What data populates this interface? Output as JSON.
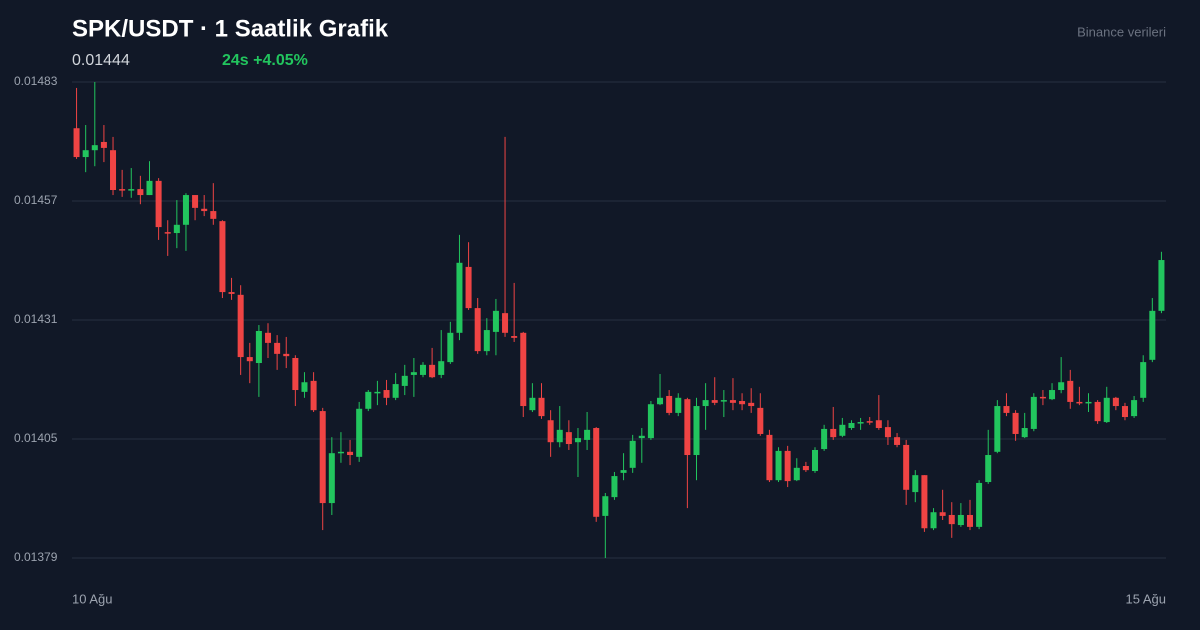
{
  "chart_data": {
    "type": "candlestick",
    "title": "SPK/USDT · 1 Saatlik Grafik",
    "price": 0.01444,
    "change_label": "24s +4.05%",
    "source": "Binance verileri",
    "x_labels": [
      "10 Ağu",
      "15 Ağu"
    ],
    "ylim": [
      0.01379,
      0.01483
    ],
    "yticks": [
      0.01483,
      0.01457,
      0.01431,
      0.01405,
      0.01379
    ],
    "grid": true,
    "up_color": "#22c55e",
    "down_color": "#ef4444",
    "open": [
      0.014729,
      0.014666,
      0.014681,
      0.014699,
      0.014681,
      0.014596,
      0.014594,
      0.014596,
      0.014583,
      0.014614,
      0.014502,
      0.0145,
      0.014518,
      0.014583,
      0.014553,
      0.014548,
      0.014526,
      0.014371,
      0.014365,
      0.014229,
      0.014216,
      0.014282,
      0.01426,
      0.014236,
      0.014227,
      0.014153,
      0.014177,
      0.014111,
      0.01391,
      0.014019,
      0.014022,
      0.014011,
      0.014116,
      0.014153,
      0.014157,
      0.01414,
      0.014166,
      0.01419,
      0.01419,
      0.014212,
      0.01419,
      0.014218,
      0.014282,
      0.014426,
      0.014336,
      0.014242,
      0.014284,
      0.014325,
      0.014275,
      0.014282,
      0.014113,
      0.01414,
      0.014091,
      0.014043,
      0.014065,
      0.014043,
      0.014048,
      0.014074,
      0.013882,
      0.013923,
      0.013976,
      0.013987,
      0.014052,
      0.014052,
      0.014126,
      0.014144,
      0.014107,
      0.014137,
      0.014015,
      0.014122,
      0.014135,
      0.014133,
      0.014135,
      0.014133,
      0.014129,
      0.014118,
      0.014059,
      0.01396,
      0.014024,
      0.01396,
      0.013991,
      0.01398,
      0.014028,
      0.014072,
      0.014057,
      0.014074,
      0.014085,
      0.014089,
      0.014091,
      0.014076,
      0.014054,
      0.014037,
      0.013934,
      0.013971,
      0.013855,
      0.01389,
      0.013884,
      0.013862,
      0.013884,
      0.013858,
      0.013956,
      0.014022,
      0.014122,
      0.014107,
      0.014054,
      0.014072,
      0.014142,
      0.014137,
      0.014157,
      0.014177,
      0.014131,
      0.014129,
      0.014131,
      0.014087,
      0.01414,
      0.014122,
      0.0141,
      0.01414,
      0.014223,
      0.01433
    ],
    "high": [
      0.014817,
      0.014736,
      0.01483,
      0.014736,
      0.01471,
      0.014638,
      0.014642,
      0.014625,
      0.014657,
      0.01462,
      0.014528,
      0.014572,
      0.014587,
      0.014583,
      0.014583,
      0.014609,
      0.014528,
      0.014402,
      0.014386,
      0.01426,
      0.014299,
      0.014303,
      0.014277,
      0.014273,
      0.014233,
      0.014196,
      0.014196,
      0.014118,
      0.014054,
      0.014065,
      0.014048,
      0.014131,
      0.014157,
      0.014177,
      0.014179,
      0.014194,
      0.014212,
      0.014227,
      0.014218,
      0.014249,
      0.014288,
      0.014306,
      0.014496,
      0.01448,
      0.014358,
      0.014314,
      0.014356,
      0.01471,
      0.014391,
      0.014284,
      0.014172,
      0.014172,
      0.014113,
      0.014122,
      0.014091,
      0.014074,
      0.014109,
      0.014076,
      0.013932,
      0.013978,
      0.014019,
      0.014059,
      0.014074,
      0.014133,
      0.014192,
      0.014157,
      0.01415,
      0.01414,
      0.01414,
      0.014172,
      0.014185,
      0.014157,
      0.014183,
      0.01415,
      0.014161,
      0.01415,
      0.01407,
      0.014032,
      0.014035,
      0.014008,
      0.014,
      0.014032,
      0.014081,
      0.01412,
      0.014096,
      0.014091,
      0.014096,
      0.014098,
      0.014146,
      0.014091,
      0.014063,
      0.014048,
      0.013982,
      0.013971,
      0.013899,
      0.013939,
      0.013912,
      0.01391,
      0.013917,
      0.01396,
      0.01407,
      0.014135,
      0.01415,
      0.014113,
      0.014107,
      0.01415,
      0.014157,
      0.014172,
      0.014229,
      0.014201,
      0.014164,
      0.01415,
      0.014135,
      0.014164,
      0.014142,
      0.014129,
      0.014144,
      0.014233,
      0.014358,
      0.014459
    ],
    "low": [
      0.014662,
      0.014633,
      0.014646,
      0.014655,
      0.014583,
      0.014579,
      0.014577,
      0.014563,
      0.014583,
      0.014485,
      0.01445,
      0.014467,
      0.014461,
      0.014528,
      0.014537,
      0.014518,
      0.014358,
      0.014354,
      0.01419,
      0.014172,
      0.014142,
      0.014227,
      0.014201,
      0.014205,
      0.014122,
      0.01414,
      0.014109,
      0.013851,
      0.013884,
      0.013998,
      0.013993,
      0.014,
      0.014111,
      0.014124,
      0.014124,
      0.014135,
      0.014146,
      0.014142,
      0.014185,
      0.014183,
      0.014183,
      0.014214,
      0.014266,
      0.014332,
      0.014236,
      0.014233,
      0.014233,
      0.014273,
      0.014262,
      0.014098,
      0.014109,
      0.014094,
      0.014011,
      0.014032,
      0.014026,
      0.013967,
      0.014026,
      0.013869,
      0.01379,
      0.013917,
      0.01396,
      0.013976,
      0.013998,
      0.014048,
      0.014124,
      0.014102,
      0.0141,
      0.013899,
      0.01396,
      0.01407,
      0.014124,
      0.014098,
      0.014113,
      0.014113,
      0.014107,
      0.014057,
      0.013956,
      0.013956,
      0.013945,
      0.013958,
      0.013978,
      0.013976,
      0.014024,
      0.014048,
      0.014054,
      0.01407,
      0.01407,
      0.014081,
      0.01407,
      0.014037,
      0.014032,
      0.013906,
      0.013912,
      0.013847,
      0.013851,
      0.013873,
      0.013834,
      0.013858,
      0.013851,
      0.013853,
      0.013952,
      0.014019,
      0.0141,
      0.014046,
      0.014052,
      0.014067,
      0.014124,
      0.014135,
      0.01415,
      0.014116,
      0.014124,
      0.014109,
      0.014083,
      0.014085,
      0.014113,
      0.014091,
      0.014096,
      0.014131,
      0.014218,
      0.014325
    ],
    "close": [
      0.014666,
      0.014681,
      0.014692,
      0.014686,
      0.014594,
      0.014594,
      0.014596,
      0.014583,
      0.014614,
      0.014513,
      0.0145,
      0.014518,
      0.014583,
      0.014555,
      0.014548,
      0.014531,
      0.014371,
      0.014367,
      0.014229,
      0.01422,
      0.014286,
      0.01426,
      0.014236,
      0.014231,
      0.014157,
      0.014174,
      0.014113,
      0.01391,
      0.014019,
      0.014022,
      0.014015,
      0.014116,
      0.014153,
      0.014153,
      0.01414,
      0.01417,
      0.014188,
      0.014196,
      0.014212,
      0.014185,
      0.01422,
      0.014282,
      0.014435,
      0.014336,
      0.014242,
      0.014288,
      0.01433,
      0.014282,
      0.014271,
      0.014122,
      0.01414,
      0.0141,
      0.014043,
      0.01407,
      0.014039,
      0.014052,
      0.01407,
      0.01388,
      0.013925,
      0.013969,
      0.013982,
      0.014046,
      0.014057,
      0.014126,
      0.01414,
      0.014107,
      0.01414,
      0.014015,
      0.014122,
      0.014135,
      0.014129,
      0.014135,
      0.014129,
      0.014126,
      0.014122,
      0.014061,
      0.01396,
      0.014024,
      0.013958,
      0.013987,
      0.013982,
      0.014026,
      0.014072,
      0.014054,
      0.014081,
      0.014085,
      0.014087,
      0.014087,
      0.014074,
      0.014054,
      0.014037,
      0.013939,
      0.013971,
      0.013855,
      0.01389,
      0.013882,
      0.013864,
      0.013884,
      0.013858,
      0.013954,
      0.014015,
      0.014122,
      0.014107,
      0.014061,
      0.014074,
      0.014142,
      0.01414,
      0.014157,
      0.014174,
      0.014131,
      0.014129,
      0.014131,
      0.014089,
      0.01414,
      0.014122,
      0.014098,
      0.014135,
      0.014218,
      0.01433,
      0.014441
    ]
  }
}
